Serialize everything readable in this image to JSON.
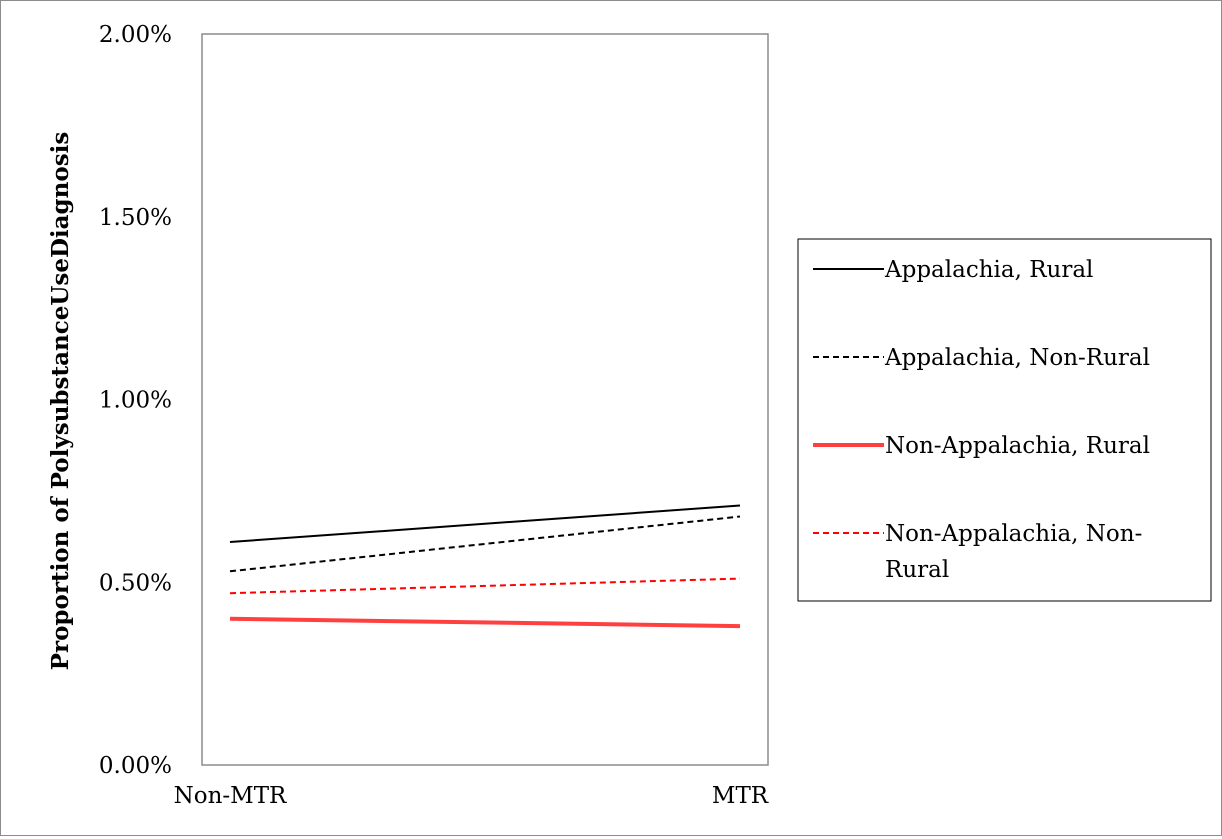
{
  "chart_data": {
    "type": "line",
    "title": "",
    "xlabel": "",
    "ylabel": "Proportion of PolysubstanceUseDiagnosis",
    "categories": [
      "Non-MTR",
      "MTR"
    ],
    "ylim": [
      0,
      0.02
    ],
    "yticks": [
      0,
      0.005,
      0.01,
      0.015,
      0.02
    ],
    "ytick_labels": [
      "0.00%",
      "0.50%",
      "1.00%",
      "1.50%",
      "2.00%"
    ],
    "grid": false,
    "legend_position": "right",
    "series": [
      {
        "name": "Appalachia, Rural",
        "values": [
          0.0061,
          0.0071
        ],
        "color": "#000000",
        "dashed": false,
        "thick": false,
        "legend_lines": [
          "Appalachia, Rural"
        ]
      },
      {
        "name": "Appalachia, Non-Rural",
        "values": [
          0.0053,
          0.0068
        ],
        "color": "#000000",
        "dashed": true,
        "thick": false,
        "legend_lines": [
          "Appalachia, Non-Rural"
        ]
      },
      {
        "name": "Non-Appalachia, Rural",
        "values": [
          0.004,
          0.0038
        ],
        "color": "#ff4040",
        "dashed": false,
        "thick": true,
        "legend_lines": [
          "Non-Appalachia, Rural"
        ]
      },
      {
        "name": "Non-Appalachia, Non-Rural",
        "values": [
          0.0047,
          0.0051
        ],
        "color": "#ff0000",
        "dashed": true,
        "thick": false,
        "legend_lines": [
          "Non-Appalachia, Non-",
          "Rural"
        ]
      }
    ]
  }
}
